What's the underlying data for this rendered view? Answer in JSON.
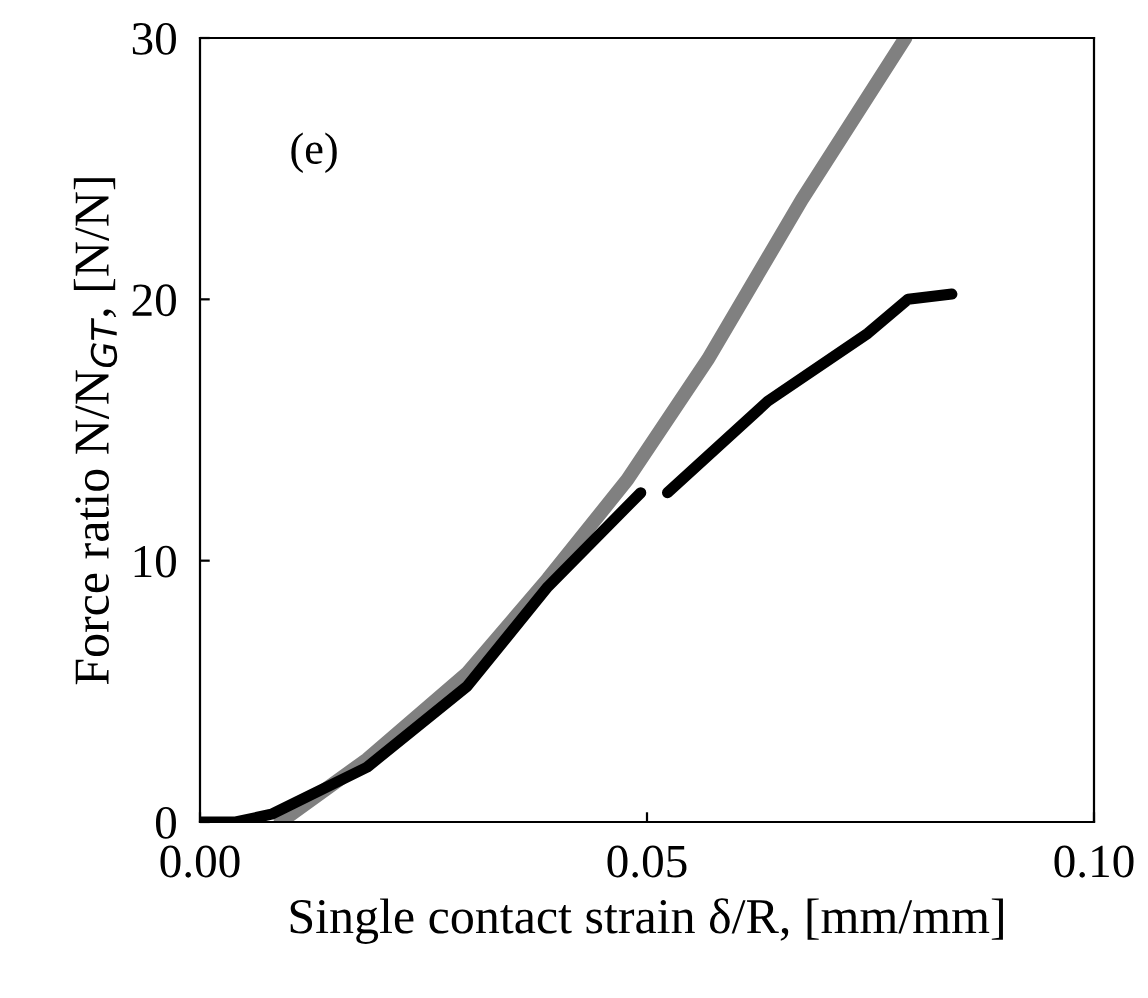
{
  "chart_data": {
    "type": "line",
    "xlabel": "Single contact strain δ/R, [mm/mm]",
    "ylabel": "Force ratio N/N$_{GT}$, [N/N]",
    "annotations": [
      "(e)"
    ],
    "xlim": [
      0,
      0.1
    ],
    "ylim": [
      0,
      30
    ],
    "xticks": [
      {
        "value": 0,
        "label": "0.00"
      },
      {
        "value": 0.05,
        "label": "0.05"
      },
      {
        "value": 0.1,
        "label": "0.10"
      }
    ],
    "yticks": [
      0,
      10,
      20,
      30
    ],
    "grid": false,
    "legend": false,
    "marker": "none",
    "line_style": "solid",
    "series": [
      {
        "color": "#808080",
        "x": [
          0.009,
          0.0187,
          0.0299,
          0.0389,
          0.0478,
          0.0568,
          0.0673,
          0.0789
        ],
        "values": [
          0,
          2.4,
          5.7,
          9.3,
          13.1,
          17.7,
          23.8,
          30
        ]
      },
      {
        "color": "#000000",
        "x": [
          0,
          0.004,
          0.008,
          0.0187,
          0.0299,
          0.0389,
          0.0493,
          0.051,
          0.0523,
          0.0635,
          0.0747,
          0.0792,
          0.0841
        ],
        "values": [
          0,
          0,
          0.3,
          2.1,
          5.2,
          9.0,
          12.6,
          null,
          12.6,
          16.1,
          18.7,
          20.0,
          20.2
        ]
      }
    ]
  }
}
